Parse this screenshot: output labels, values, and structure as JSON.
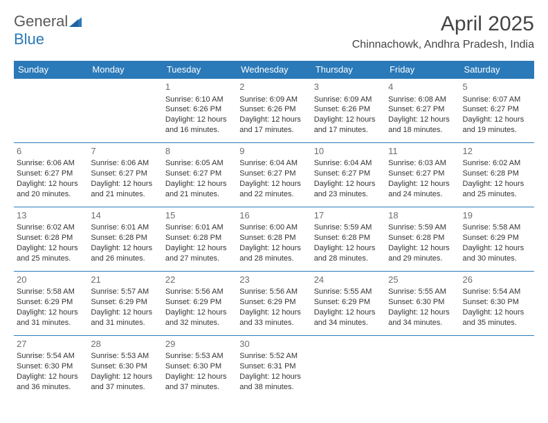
{
  "logo": {
    "textA": "General",
    "textB": "Blue"
  },
  "header": {
    "month_title": "April 2025",
    "location": "Chinnachowk, Andhra Pradesh, India"
  },
  "colors": {
    "header_bg": "#2a79b8",
    "header_text": "#ffffff",
    "row_border": "#2a79b8",
    "daynum": "#6d6d6d",
    "text": "#333333",
    "background": "#ffffff"
  },
  "day_names": [
    "Sunday",
    "Monday",
    "Tuesday",
    "Wednesday",
    "Thursday",
    "Friday",
    "Saturday"
  ],
  "weeks": [
    [
      null,
      null,
      {
        "n": "1",
        "sunrise": "Sunrise: 6:10 AM",
        "sunset": "Sunset: 6:26 PM",
        "daylight": "Daylight: 12 hours and 16 minutes."
      },
      {
        "n": "2",
        "sunrise": "Sunrise: 6:09 AM",
        "sunset": "Sunset: 6:26 PM",
        "daylight": "Daylight: 12 hours and 17 minutes."
      },
      {
        "n": "3",
        "sunrise": "Sunrise: 6:09 AM",
        "sunset": "Sunset: 6:26 PM",
        "daylight": "Daylight: 12 hours and 17 minutes."
      },
      {
        "n": "4",
        "sunrise": "Sunrise: 6:08 AM",
        "sunset": "Sunset: 6:27 PM",
        "daylight": "Daylight: 12 hours and 18 minutes."
      },
      {
        "n": "5",
        "sunrise": "Sunrise: 6:07 AM",
        "sunset": "Sunset: 6:27 PM",
        "daylight": "Daylight: 12 hours and 19 minutes."
      }
    ],
    [
      {
        "n": "6",
        "sunrise": "Sunrise: 6:06 AM",
        "sunset": "Sunset: 6:27 PM",
        "daylight": "Daylight: 12 hours and 20 minutes."
      },
      {
        "n": "7",
        "sunrise": "Sunrise: 6:06 AM",
        "sunset": "Sunset: 6:27 PM",
        "daylight": "Daylight: 12 hours and 21 minutes."
      },
      {
        "n": "8",
        "sunrise": "Sunrise: 6:05 AM",
        "sunset": "Sunset: 6:27 PM",
        "daylight": "Daylight: 12 hours and 21 minutes."
      },
      {
        "n": "9",
        "sunrise": "Sunrise: 6:04 AM",
        "sunset": "Sunset: 6:27 PM",
        "daylight": "Daylight: 12 hours and 22 minutes."
      },
      {
        "n": "10",
        "sunrise": "Sunrise: 6:04 AM",
        "sunset": "Sunset: 6:27 PM",
        "daylight": "Daylight: 12 hours and 23 minutes."
      },
      {
        "n": "11",
        "sunrise": "Sunrise: 6:03 AM",
        "sunset": "Sunset: 6:27 PM",
        "daylight": "Daylight: 12 hours and 24 minutes."
      },
      {
        "n": "12",
        "sunrise": "Sunrise: 6:02 AM",
        "sunset": "Sunset: 6:28 PM",
        "daylight": "Daylight: 12 hours and 25 minutes."
      }
    ],
    [
      {
        "n": "13",
        "sunrise": "Sunrise: 6:02 AM",
        "sunset": "Sunset: 6:28 PM",
        "daylight": "Daylight: 12 hours and 25 minutes."
      },
      {
        "n": "14",
        "sunrise": "Sunrise: 6:01 AM",
        "sunset": "Sunset: 6:28 PM",
        "daylight": "Daylight: 12 hours and 26 minutes."
      },
      {
        "n": "15",
        "sunrise": "Sunrise: 6:01 AM",
        "sunset": "Sunset: 6:28 PM",
        "daylight": "Daylight: 12 hours and 27 minutes."
      },
      {
        "n": "16",
        "sunrise": "Sunrise: 6:00 AM",
        "sunset": "Sunset: 6:28 PM",
        "daylight": "Daylight: 12 hours and 28 minutes."
      },
      {
        "n": "17",
        "sunrise": "Sunrise: 5:59 AM",
        "sunset": "Sunset: 6:28 PM",
        "daylight": "Daylight: 12 hours and 28 minutes."
      },
      {
        "n": "18",
        "sunrise": "Sunrise: 5:59 AM",
        "sunset": "Sunset: 6:28 PM",
        "daylight": "Daylight: 12 hours and 29 minutes."
      },
      {
        "n": "19",
        "sunrise": "Sunrise: 5:58 AM",
        "sunset": "Sunset: 6:29 PM",
        "daylight": "Daylight: 12 hours and 30 minutes."
      }
    ],
    [
      {
        "n": "20",
        "sunrise": "Sunrise: 5:58 AM",
        "sunset": "Sunset: 6:29 PM",
        "daylight": "Daylight: 12 hours and 31 minutes."
      },
      {
        "n": "21",
        "sunrise": "Sunrise: 5:57 AM",
        "sunset": "Sunset: 6:29 PM",
        "daylight": "Daylight: 12 hours and 31 minutes."
      },
      {
        "n": "22",
        "sunrise": "Sunrise: 5:56 AM",
        "sunset": "Sunset: 6:29 PM",
        "daylight": "Daylight: 12 hours and 32 minutes."
      },
      {
        "n": "23",
        "sunrise": "Sunrise: 5:56 AM",
        "sunset": "Sunset: 6:29 PM",
        "daylight": "Daylight: 12 hours and 33 minutes."
      },
      {
        "n": "24",
        "sunrise": "Sunrise: 5:55 AM",
        "sunset": "Sunset: 6:29 PM",
        "daylight": "Daylight: 12 hours and 34 minutes."
      },
      {
        "n": "25",
        "sunrise": "Sunrise: 5:55 AM",
        "sunset": "Sunset: 6:30 PM",
        "daylight": "Daylight: 12 hours and 34 minutes."
      },
      {
        "n": "26",
        "sunrise": "Sunrise: 5:54 AM",
        "sunset": "Sunset: 6:30 PM",
        "daylight": "Daylight: 12 hours and 35 minutes."
      }
    ],
    [
      {
        "n": "27",
        "sunrise": "Sunrise: 5:54 AM",
        "sunset": "Sunset: 6:30 PM",
        "daylight": "Daylight: 12 hours and 36 minutes."
      },
      {
        "n": "28",
        "sunrise": "Sunrise: 5:53 AM",
        "sunset": "Sunset: 6:30 PM",
        "daylight": "Daylight: 12 hours and 37 minutes."
      },
      {
        "n": "29",
        "sunrise": "Sunrise: 5:53 AM",
        "sunset": "Sunset: 6:30 PM",
        "daylight": "Daylight: 12 hours and 37 minutes."
      },
      {
        "n": "30",
        "sunrise": "Sunrise: 5:52 AM",
        "sunset": "Sunset: 6:31 PM",
        "daylight": "Daylight: 12 hours and 38 minutes."
      },
      null,
      null,
      null
    ]
  ]
}
